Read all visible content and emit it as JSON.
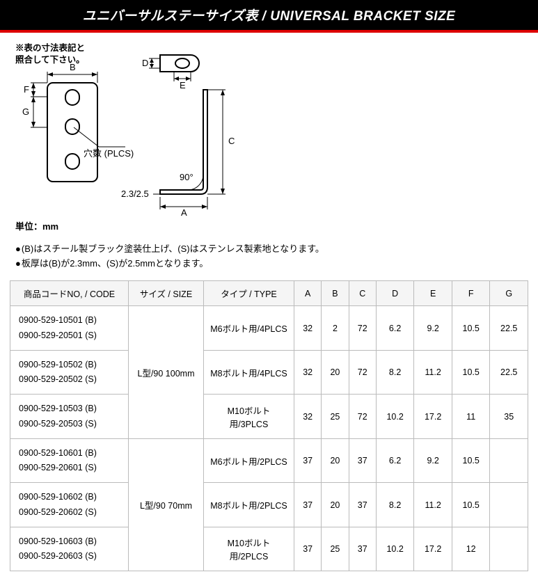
{
  "title_bar": "ユニバーサルステーサイズ表 / UNIVERSAL BRACKET SIZE",
  "diagram": {
    "note_line1": "※表の寸法表記と",
    "note_line2": "照合して下さい。",
    "labels": {
      "A": "A",
      "B": "B",
      "C": "C",
      "D": "D",
      "E": "E",
      "F": "F",
      "G": "G"
    },
    "plcs_label": "穴数 (PLCS)",
    "angle_label": "90°",
    "thickness_label": "2.3/2.5",
    "unit_label": "単位：mm"
  },
  "notes": [
    "(B)はスチール製ブラック塗装仕上げ、(S)はステンレス製素地となります。",
    "板厚は(B)が2.3mm、(S)が2.5mmとなります。"
  ],
  "table": {
    "headers": [
      "商品コードNO, / CODE",
      "サイズ / SIZE",
      "タイプ / TYPE",
      "A",
      "B",
      "C",
      "D",
      "E",
      "F",
      "G"
    ],
    "body": [
      {
        "size": "L型/90 100mm",
        "rows": [
          {
            "codes": [
              "0900-529-10501 (B)",
              "0900-529-20501 (S)"
            ],
            "type": "M6ボルト用/4PLCS",
            "dims": [
              "32",
              "2",
              "72",
              "6.2",
              "9.2",
              "10.5",
              "22.5"
            ]
          },
          {
            "codes": [
              "0900-529-10502 (B)",
              "0900-529-20502 (S)"
            ],
            "type": "M8ボルト用/4PLCS",
            "dims": [
              "32",
              "20",
              "72",
              "8.2",
              "11.2",
              "10.5",
              "22.5"
            ]
          },
          {
            "codes": [
              "0900-529-10503 (B)",
              "0900-529-20503 (S)"
            ],
            "type": "M10ボルト用/3PLCS",
            "dims": [
              "32",
              "25",
              "72",
              "10.2",
              "17.2",
              "11",
              "35"
            ]
          }
        ]
      },
      {
        "size": "L型/90 70mm",
        "rows": [
          {
            "codes": [
              "0900-529-10601 (B)",
              "0900-529-20601 (S)"
            ],
            "type": "M6ボルト用/2PLCS",
            "dims": [
              "37",
              "20",
              "37",
              "6.2",
              "9.2",
              "10.5",
              ""
            ]
          },
          {
            "codes": [
              "0900-529-10602 (B)",
              "0900-529-20602 (S)"
            ],
            "type": "M8ボルト用/2PLCS",
            "dims": [
              "37",
              "20",
              "37",
              "8.2",
              "11.2",
              "10.5",
              ""
            ]
          },
          {
            "codes": [
              "0900-529-10603 (B)",
              "0900-529-20603 (S)"
            ],
            "type": "M10ボルト用/2PLCS",
            "dims": [
              "37",
              "25",
              "37",
              "10.2",
              "17.2",
              "12",
              ""
            ]
          }
        ]
      }
    ]
  },
  "colors": {
    "title_bg": "#000000",
    "title_underline": "#d00000",
    "title_text": "#ffffff",
    "border": "#bbbbbb",
    "th_bg": "#f5f5f5",
    "ink": "#000000"
  }
}
